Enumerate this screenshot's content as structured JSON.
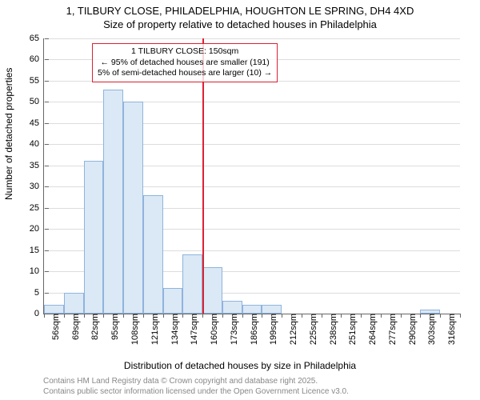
{
  "title_line1": "1, TILBURY CLOSE, PHILADELPHIA, HOUGHTON LE SPRING, DH4 4XD",
  "title_line2": "Size of property relative to detached houses in Philadelphia",
  "ylabel": "Number of detached properties",
  "xlabel": "Distribution of detached houses by size in Philadelphia",
  "credit1": "Contains HM Land Registry data © Crown copyright and database right 2025.",
  "credit2": "Contains public sector information licensed under the Open Government Licence v3.0.",
  "chart": {
    "type": "histogram",
    "ylim": [
      0,
      65
    ],
    "ytick_step": 5,
    "x_categories": [
      "56sqm",
      "69sqm",
      "82sqm",
      "95sqm",
      "108sqm",
      "121sqm",
      "134sqm",
      "147sqm",
      "160sqm",
      "173sqm",
      "186sqm",
      "199sqm",
      "212sqm",
      "225sqm",
      "238sqm",
      "251sqm",
      "264sqm",
      "277sqm",
      "290sqm",
      "303sqm",
      "316sqm"
    ],
    "bar_values": [
      2,
      5,
      36,
      53,
      50,
      28,
      6,
      14,
      11,
      3,
      2,
      2,
      0,
      0,
      0,
      0,
      0,
      0,
      0,
      1,
      0
    ],
    "bar_fill": "#dbe8f6",
    "bar_border": "#8fb4dd",
    "grid_color": "#dddddd",
    "axis_color": "#666666",
    "marker_index": 8,
    "marker_color": "#dd2233",
    "annot_line1": "1 TILBURY CLOSE: 150sqm",
    "annot_line2": "← 95% of detached houses are smaller (191)",
    "annot_line3": "5% of semi-detached houses are larger (10) →"
  }
}
